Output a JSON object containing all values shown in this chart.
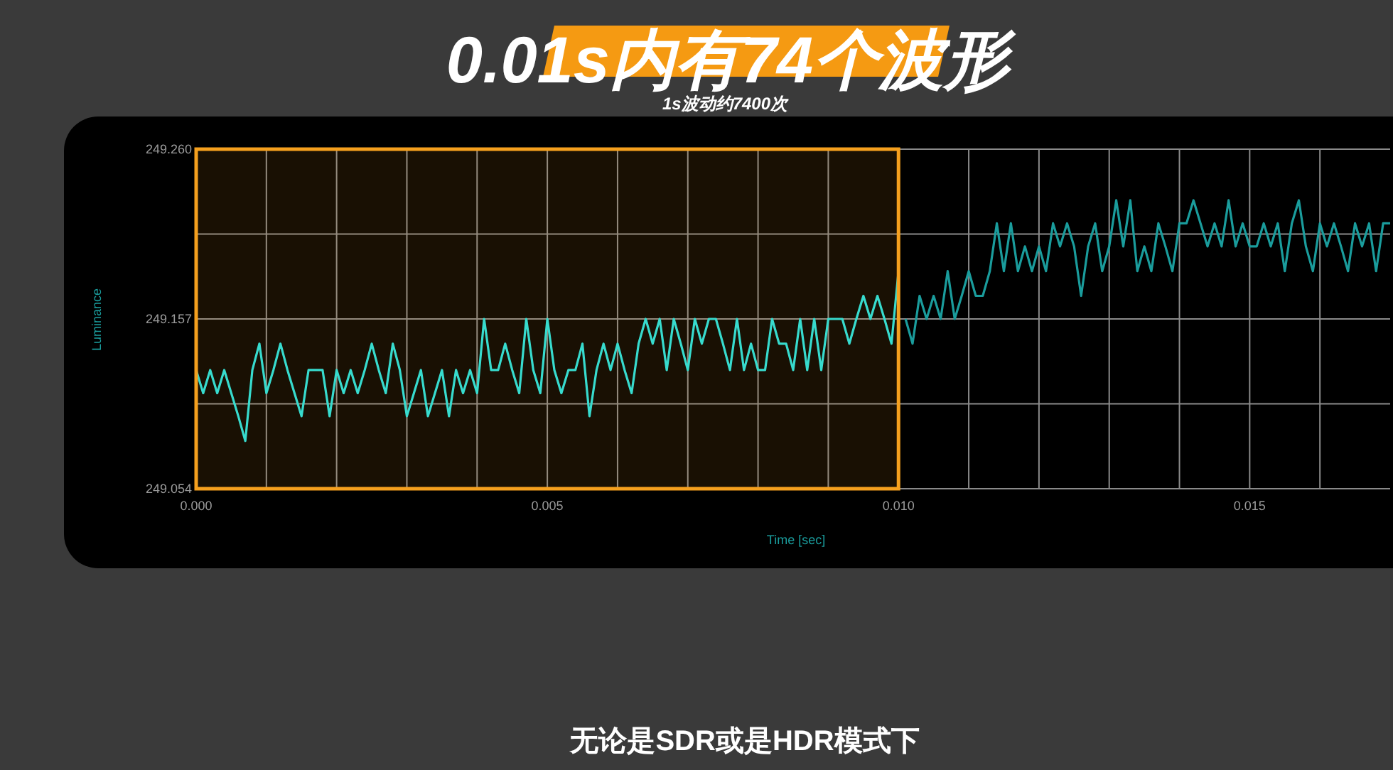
{
  "chart_data": {
    "type": "line",
    "title": "0.01s内有74个波形",
    "subtitle": "1s波动约7400次",
    "xlabel": "Time [sec]",
    "ylabel": "Luminance",
    "annotations": [
      "无论是SDR或是HDR模式下"
    ],
    "xlim": [
      0,
      0.017
    ],
    "ylim": [
      249.054,
      249.26
    ],
    "xticks": [
      {
        "value": 0,
        "label": "0.000"
      },
      {
        "value": 0.001,
        "label": null
      },
      {
        "value": 0.002,
        "label": null
      },
      {
        "value": 0.003,
        "label": null
      },
      {
        "value": 0.004,
        "label": null
      },
      0.005,
      {
        "value": 0.006,
        "label": null
      },
      {
        "value": 0.007,
        "label": null
      },
      {
        "value": 0.008,
        "label": null
      },
      {
        "value": 0.009,
        "label": null
      },
      {
        "value": 0.01,
        "label": "0.010"
      },
      {
        "value": 0.011,
        "label": null
      },
      {
        "value": 0.012,
        "label": null
      },
      {
        "value": 0.013,
        "label": null
      },
      {
        "value": 0.014,
        "label": null
      },
      0.015,
      {
        "value": 0.016,
        "label": null
      }
    ],
    "yticks": [
      249.054,
      {
        "value": 249.1055,
        "label": null
      },
      249.157,
      {
        "value": 249.2085,
        "label": null
      },
      {
        "value": 249.26,
        "label": "249.260"
      }
    ],
    "grid": true,
    "bands": [
      {
        "axis": "x",
        "from": 0,
        "to": 0.01,
        "color": "#f5a01e"
      }
    ],
    "series": [
      {
        "color": "#22e3e3",
        "x": [
          0,
          0.0001,
          0.0002,
          0.0003,
          0.0004,
          0.0005,
          0.0006,
          0.0007,
          0.0008,
          0.0009,
          0.001,
          0.0011,
          0.0012,
          0.0013,
          0.0014,
          0.0015,
          0.0016,
          0.0017,
          0.0018,
          0.0019,
          0.002,
          0.0021,
          0.0022,
          0.0023,
          0.0024,
          0.0025,
          0.0026,
          0.0027,
          0.0028,
          0.0029,
          0.003,
          0.0031,
          0.0032,
          0.0033,
          0.0034,
          0.0035,
          0.0036,
          0.0037,
          0.0038,
          0.0039,
          0.004,
          0.0041,
          0.0042,
          0.0043,
          0.0044,
          0.0045,
          0.0046,
          0.0047,
          0.0048,
          0.0049,
          0.005,
          0.0051,
          0.0052,
          0.0053,
          0.0054,
          0.0055,
          0.0056,
          0.0057,
          0.0058,
          0.0059,
          0.006,
          0.0061,
          0.0062,
          0.0063,
          0.0064,
          0.0065,
          0.0066,
          0.0067,
          0.0068,
          0.0069,
          0.007,
          0.0071,
          0.0072,
          0.0073,
          0.0074,
          0.0075,
          0.0076,
          0.0077,
          0.0078,
          0.0079,
          0.008,
          0.0081,
          0.0082,
          0.0083,
          0.0084,
          0.0085,
          0.0086,
          0.0087,
          0.0088,
          0.0089,
          0.009,
          0.0091,
          0.0092,
          0.0093,
          0.0094,
          0.0095,
          0.0096,
          0.0097,
          0.0098,
          0.0099,
          0.01
        ],
        "values": [
          249.126,
          249.112,
          249.126,
          249.112,
          249.126,
          249.112,
          249.098,
          249.083,
          249.126,
          249.142,
          249.112,
          249.126,
          249.142,
          249.126,
          249.112,
          249.098,
          249.126,
          249.126,
          249.126,
          249.098,
          249.126,
          249.112,
          249.126,
          249.112,
          249.126,
          249.142,
          249.126,
          249.112,
          249.142,
          249.126,
          249.098,
          249.112,
          249.126,
          249.098,
          249.112,
          249.126,
          249.098,
          249.126,
          249.112,
          249.126,
          249.112,
          249.157,
          249.126,
          249.126,
          249.142,
          249.126,
          249.112,
          249.157,
          249.126,
          249.112,
          249.157,
          249.126,
          249.112,
          249.126,
          249.126,
          249.142,
          249.098,
          249.126,
          249.142,
          249.126,
          249.142,
          249.126,
          249.112,
          249.142,
          249.157,
          249.142,
          249.157,
          249.126,
          249.157,
          249.142,
          249.126,
          249.157,
          249.142,
          249.157,
          249.157,
          249.142,
          249.126,
          249.157,
          249.126,
          249.142,
          249.126,
          249.126,
          249.157,
          249.142,
          249.142,
          249.126,
          249.157,
          249.126,
          249.157,
          249.126,
          249.157,
          249.157,
          249.157,
          249.142,
          249.157,
          249.171,
          249.157,
          249.171,
          249.157,
          249.142,
          249.186
        ]
      },
      {
        "color": "#1a9c9c",
        "x": [
          0.0101,
          0.0102,
          0.0103,
          0.0104,
          0.0105,
          0.0106,
          0.0107,
          0.0108,
          0.0109,
          0.011,
          0.0111,
          0.0112,
          0.0113,
          0.0114,
          0.0115,
          0.0116,
          0.0117,
          0.0118,
          0.0119,
          0.012,
          0.0121,
          0.0122,
          0.0123,
          0.0124,
          0.0125,
          0.0126,
          0.0127,
          0.0128,
          0.0129,
          0.013,
          0.0131,
          0.0132,
          0.0133,
          0.0134,
          0.0135,
          0.0136,
          0.0137,
          0.0138,
          0.0139,
          0.014,
          0.0141,
          0.0142,
          0.0143,
          0.0144,
          0.0145,
          0.0146,
          0.0147,
          0.0148,
          0.0149,
          0.015,
          0.0151,
          0.0152,
          0.0153,
          0.0154,
          0.0155,
          0.0156,
          0.0157,
          0.0158,
          0.0159,
          0.016,
          0.0161,
          0.0162,
          0.0163,
          0.0164,
          0.0165,
          0.0166,
          0.0167,
          0.0168,
          0.0169,
          0.017
        ],
        "values": [
          249.157,
          249.142,
          249.171,
          249.157,
          249.171,
          249.157,
          249.186,
          249.157,
          249.171,
          249.186,
          249.171,
          249.171,
          249.186,
          249.215,
          249.186,
          249.215,
          249.186,
          249.201,
          249.186,
          249.201,
          249.186,
          249.215,
          249.201,
          249.215,
          249.201,
          249.171,
          249.201,
          249.215,
          249.186,
          249.201,
          249.229,
          249.201,
          249.229,
          249.186,
          249.201,
          249.186,
          249.215,
          249.201,
          249.186,
          249.215,
          249.215,
          249.229,
          249.215,
          249.201,
          249.215,
          249.201,
          249.229,
          249.201,
          249.215,
          249.201,
          249.201,
          249.215,
          249.201,
          249.215,
          249.186,
          249.215,
          249.229,
          249.201,
          249.186,
          249.215,
          249.201,
          249.215,
          249.201,
          249.186,
          249.215,
          249.201,
          249.215,
          249.186,
          249.215,
          249.215
        ]
      }
    ]
  }
}
